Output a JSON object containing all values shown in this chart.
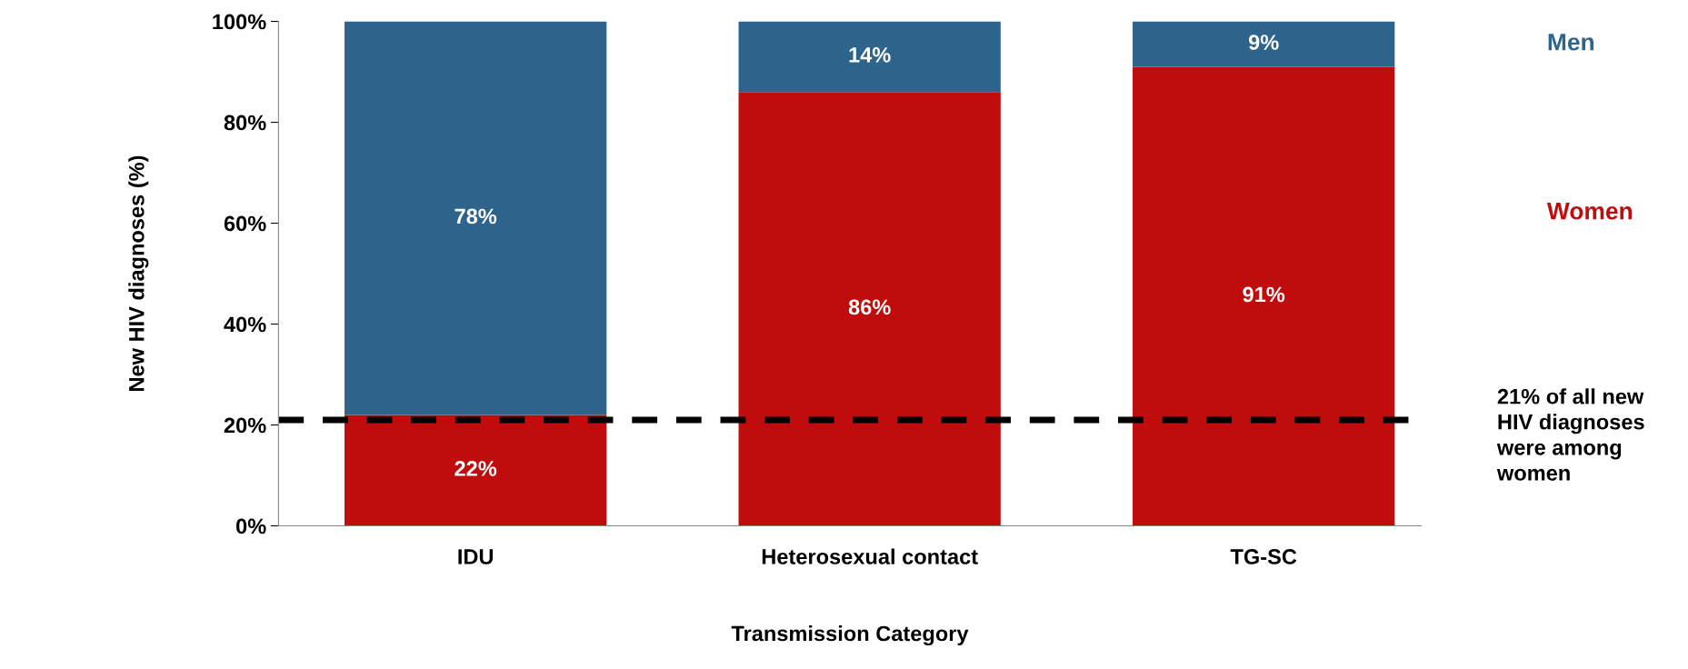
{
  "chart_data": {
    "type": "bar",
    "stacked": true,
    "xlabel": "Transmission Category",
    "ylabel": "New HIV diagnoses (%)",
    "categories": [
      "IDU",
      "Heterosexual contact",
      "TG-SC"
    ],
    "series": [
      {
        "name": "Women",
        "color": "#c00c0c",
        "values": [
          22,
          86,
          91
        ],
        "value_labels": [
          "22%",
          "86%",
          "91%"
        ]
      },
      {
        "name": "Men",
        "color": "#2e648c",
        "values": [
          78,
          14,
          9
        ],
        "value_labels": [
          "78%",
          "14%",
          "9%"
        ]
      }
    ],
    "ylim": [
      0,
      100
    ],
    "yticks": [
      {
        "value": 0,
        "label": "0%"
      },
      {
        "value": 20,
        "label": "20%"
      },
      {
        "value": 40,
        "label": "40%"
      },
      {
        "value": 60,
        "label": "60%"
      },
      {
        "value": 80,
        "label": "80%"
      },
      {
        "value": 100,
        "label": "100%"
      }
    ],
    "ref_lines": [
      {
        "axis": "y",
        "value": 21,
        "label": "21% of all new\nHIV diagnoses\nwere among\nwomen",
        "color": "#000000",
        "line_style": "dashed"
      }
    ],
    "legend": "right",
    "grid": false
  }
}
